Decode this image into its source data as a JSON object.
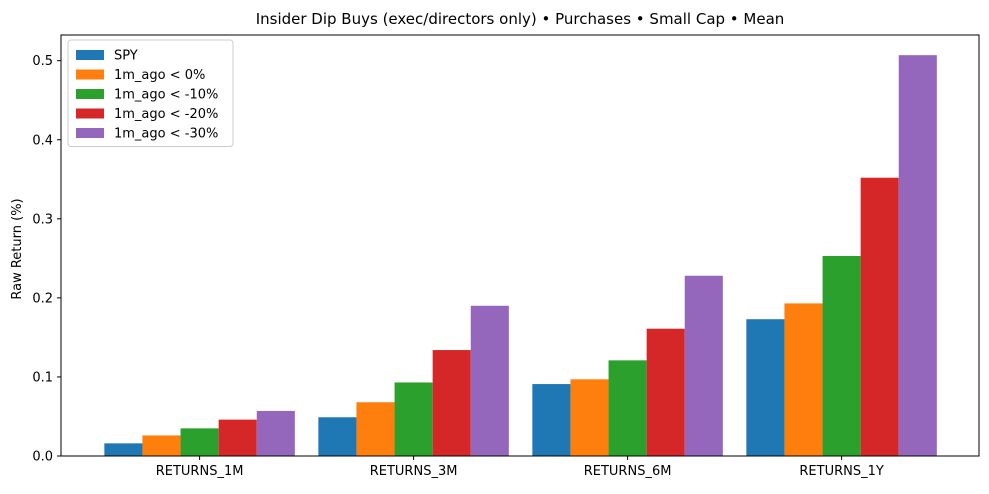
{
  "chart_data": {
    "type": "bar",
    "title": "Insider Dip Buys (exec/directors only) • Purchases • Small Cap • Mean",
    "xlabel": "",
    "ylabel": "Raw Return (%)",
    "categories": [
      "RETURNS_1M",
      "RETURNS_3M",
      "RETURNS_6M",
      "RETURNS_1Y"
    ],
    "series": [
      {
        "name": "SPY",
        "color": "#1f77b4",
        "values": [
          0.016,
          0.049,
          0.091,
          0.173
        ]
      },
      {
        "name": "1m_ago < 0%",
        "color": "#ff7f0e",
        "values": [
          0.026,
          0.068,
          0.097,
          0.193
        ]
      },
      {
        "name": "1m_ago < -10%",
        "color": "#2ca02c",
        "values": [
          0.035,
          0.093,
          0.121,
          0.253
        ]
      },
      {
        "name": "1m_ago < -20%",
        "color": "#d62728",
        "values": [
          0.046,
          0.134,
          0.161,
          0.352
        ]
      },
      {
        "name": "1m_ago < -30%",
        "color": "#9467bd",
        "values": [
          0.057,
          0.19,
          0.228,
          0.507
        ]
      }
    ],
    "ylim": [
      0,
      0.5325
    ],
    "yticks": [
      0.0,
      0.1,
      0.2,
      0.3,
      0.4,
      0.5
    ],
    "ytick_labels": [
      "0.0",
      "0.1",
      "0.2",
      "0.3",
      "0.4",
      "0.5"
    ],
    "grid": false,
    "legend_position": "top-left"
  }
}
